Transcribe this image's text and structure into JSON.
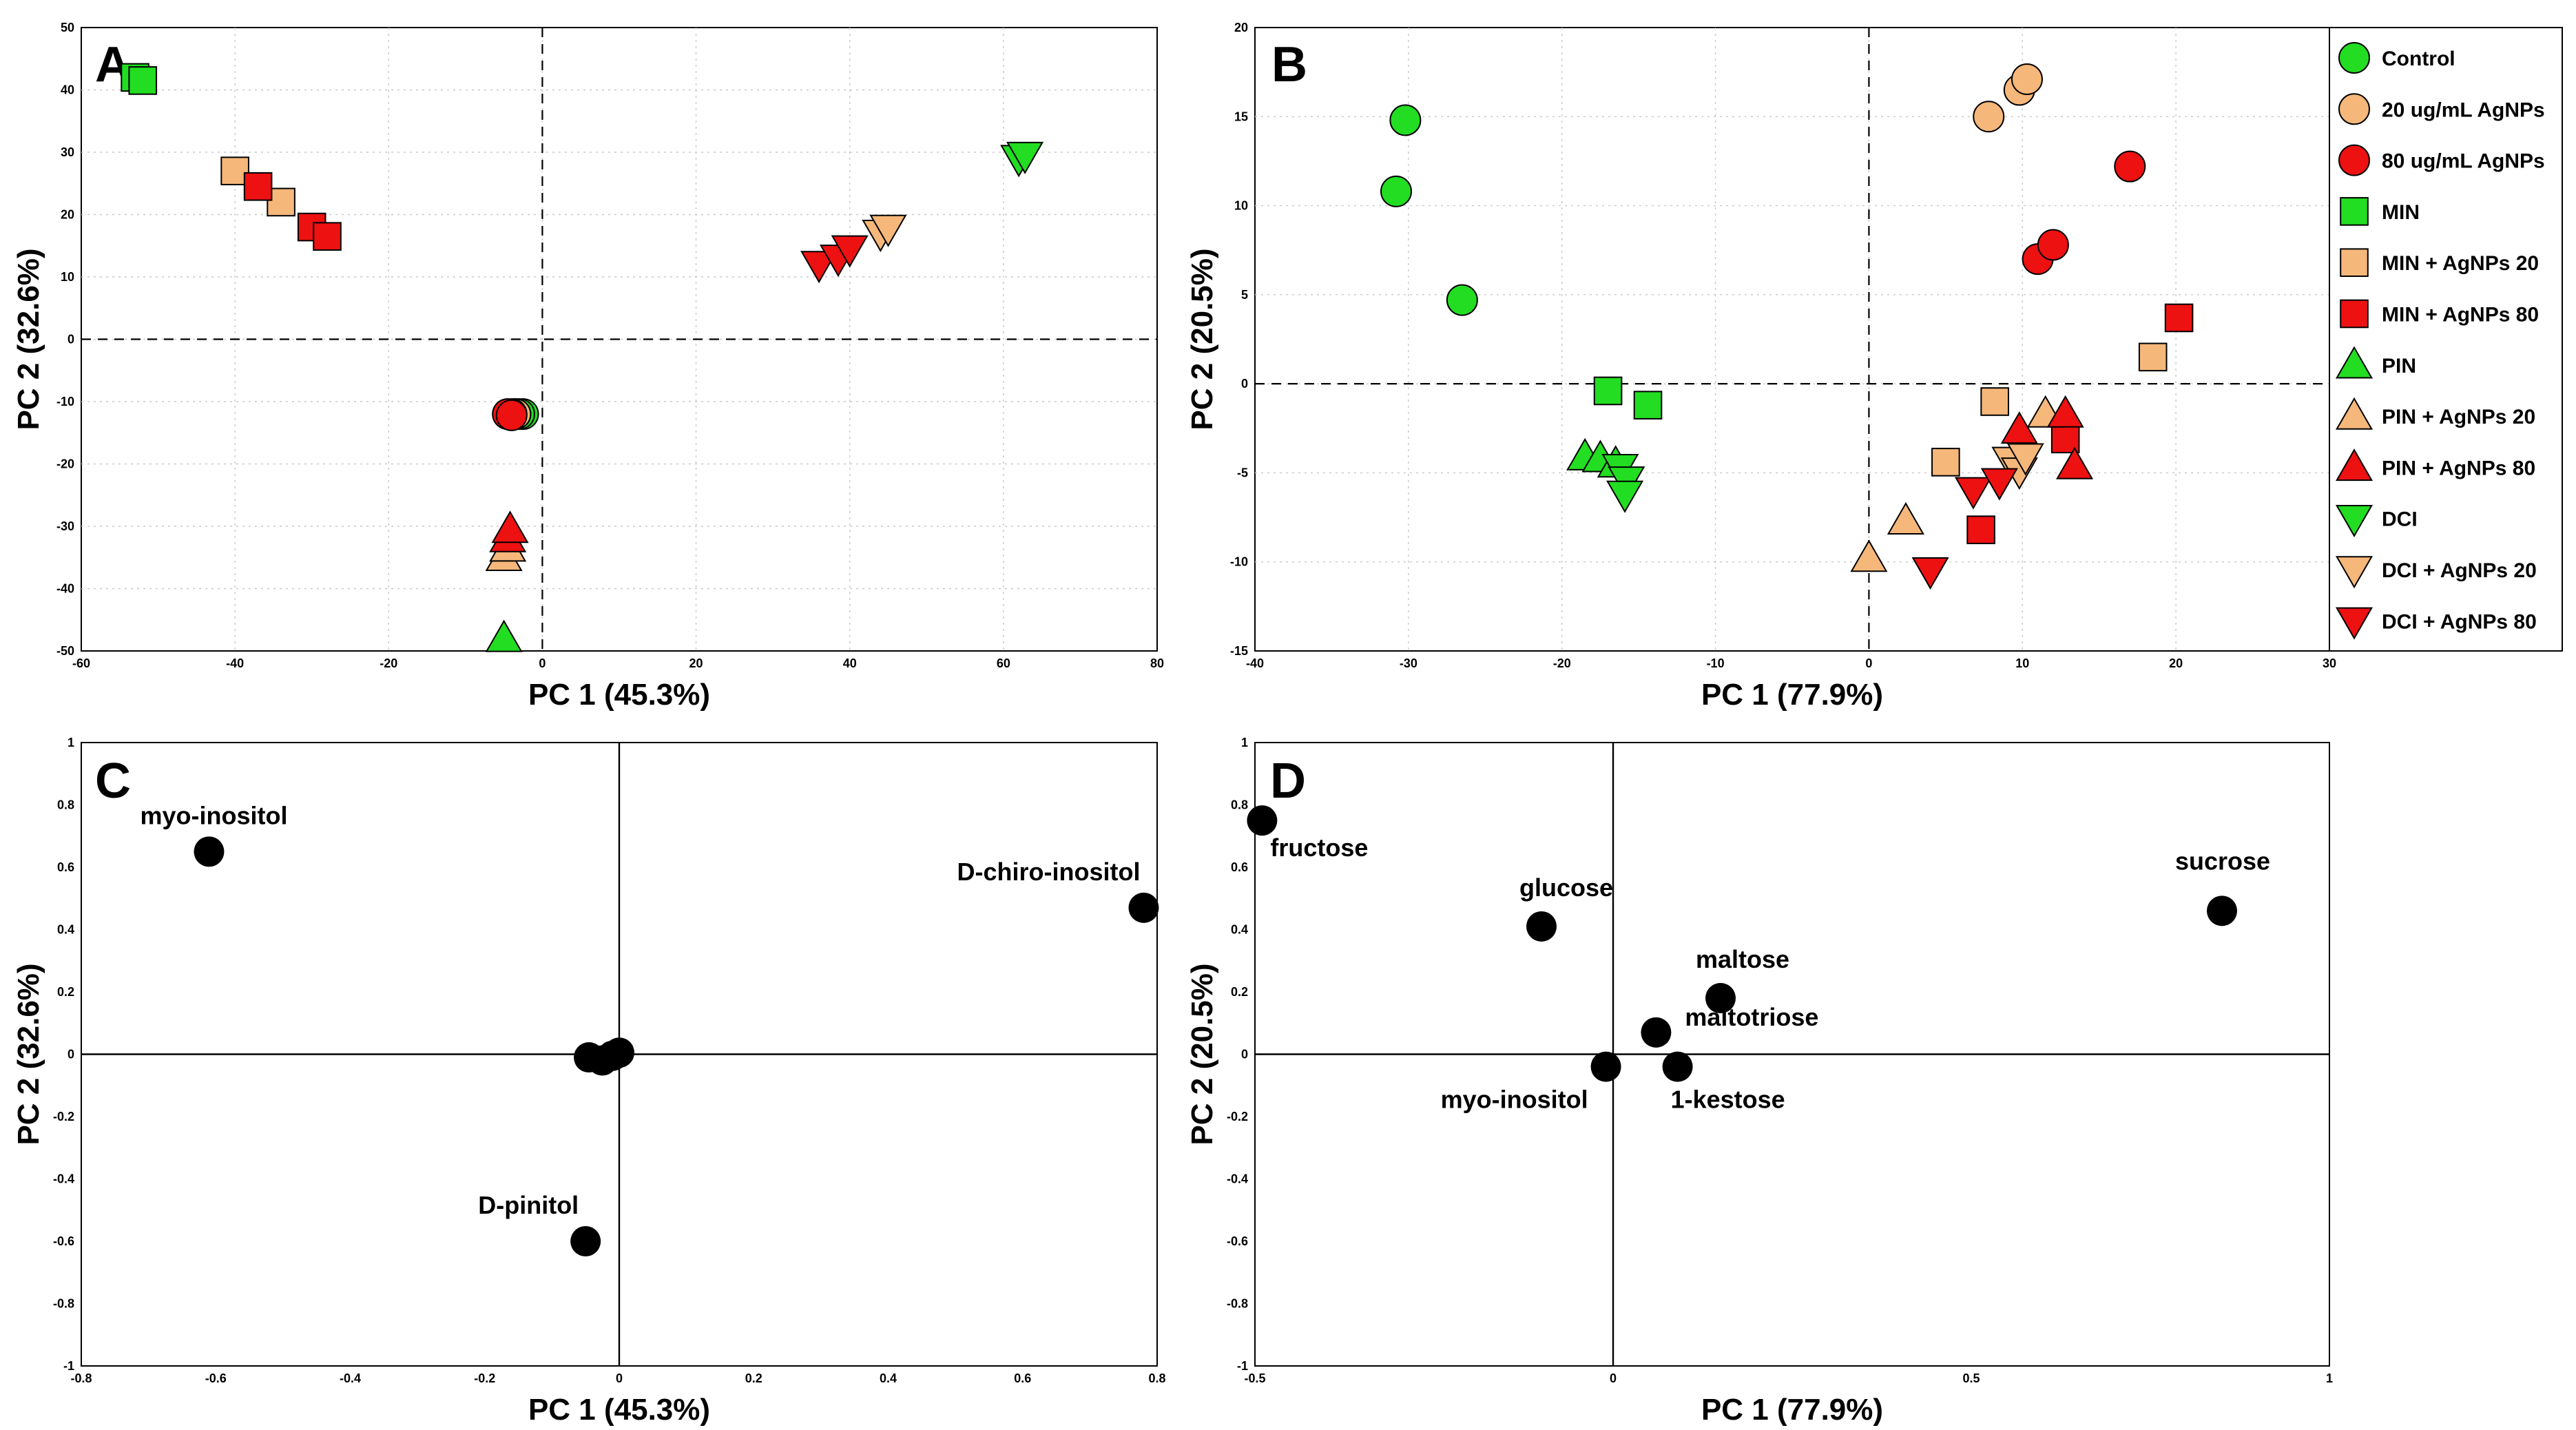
{
  "chart_data": [
    {
      "panel": "A",
      "type": "scatter",
      "title": "",
      "xlabel": "PC 1 (45.3%)",
      "ylabel": "PC 2 (32.6%)",
      "xlim": [
        -60,
        80
      ],
      "ylim": [
        -50,
        50
      ],
      "xticks": [
        -60,
        -40,
        -20,
        0,
        20,
        40,
        60,
        80
      ],
      "yticks": [
        -50,
        -40,
        -30,
        -20,
        -10,
        0,
        10,
        20,
        30,
        40,
        50
      ],
      "grid": true,
      "series": [
        {
          "name": "Control",
          "points": [
            [
              -2.5,
              -12
            ],
            [
              -3,
              -12
            ],
            [
              -3.5,
              -12
            ]
          ]
        },
        {
          "name": "20 ug/mL AgNPs",
          "points": [
            [
              -3.5,
              -12
            ],
            [
              -4,
              -12
            ]
          ]
        },
        {
          "name": "80 ug/mL AgNPs",
          "points": [
            [
              -4.5,
              -12
            ],
            [
              -4,
              -12.2
            ]
          ]
        },
        {
          "name": "MIN",
          "points": [
            [
              -53,
              42
            ],
            [
              -52,
              41.5
            ]
          ]
        },
        {
          "name": "MIN + AgNPs 20",
          "points": [
            [
              -40,
              27
            ],
            [
              -34,
              22
            ]
          ]
        },
        {
          "name": "MIN + AgNPs 80",
          "points": [
            [
              -37,
              24.5
            ],
            [
              -30,
              18
            ],
            [
              -28,
              16.5
            ]
          ]
        },
        {
          "name": "PIN",
          "points": [
            [
              -5,
              -48
            ]
          ]
        },
        {
          "name": "PIN + AgNPs 20",
          "points": [
            [
              -5,
              -35
            ],
            [
              -4.5,
              -33.5
            ]
          ]
        },
        {
          "name": "PIN + AgNPs 80",
          "points": [
            [
              -4.5,
              -32
            ],
            [
              -4.2,
              -30.5
            ]
          ]
        },
        {
          "name": "DCI",
          "points": [
            [
              62,
              29
            ],
            [
              62.8,
              29.5
            ]
          ]
        },
        {
          "name": "DCI + AgNPs 20",
          "points": [
            [
              44,
              17
            ],
            [
              45,
              17.8
            ]
          ]
        },
        {
          "name": "DCI + AgNPs 80",
          "points": [
            [
              36,
              12
            ],
            [
              38.5,
              13
            ],
            [
              40,
              14.5
            ]
          ]
        }
      ]
    },
    {
      "panel": "B",
      "type": "scatter",
      "title": "",
      "xlabel": "PC 1 (77.9%)",
      "ylabel": "PC 2 (20.5%)",
      "xlim": [
        -40,
        30
      ],
      "ylim": [
        -15,
        20
      ],
      "xticks": [
        -40,
        -30,
        -20,
        -10,
        0,
        10,
        20,
        30
      ],
      "yticks": [
        -15,
        -10,
        -5,
        0,
        5,
        10,
        15,
        20
      ],
      "grid": true,
      "legend": "right",
      "series": [
        {
          "name": "Control",
          "points": [
            [
              -30.2,
              14.8
            ],
            [
              -30.8,
              10.8
            ],
            [
              -26.5,
              4.7
            ]
          ]
        },
        {
          "name": "20 ug/mL AgNPs",
          "points": [
            [
              7.8,
              15
            ],
            [
              9.8,
              16.5
            ],
            [
              10.3,
              17.1
            ]
          ]
        },
        {
          "name": "80 ug/mL AgNPs",
          "points": [
            [
              17,
              12.2
            ],
            [
              11,
              7
            ],
            [
              12,
              7.8
            ]
          ]
        },
        {
          "name": "MIN",
          "points": [
            [
              -17,
              -0.4
            ],
            [
              -14.4,
              -1.2
            ]
          ]
        },
        {
          "name": "MIN + AgNPs 20",
          "points": [
            [
              5,
              -4.4
            ],
            [
              8.2,
              -1
            ],
            [
              18.5,
              1.5
            ]
          ]
        },
        {
          "name": "MIN + AgNPs 80",
          "points": [
            [
              20.2,
              3.7
            ],
            [
              12.8,
              -3.1
            ],
            [
              7.3,
              -8.2
            ]
          ]
        },
        {
          "name": "PIN",
          "points": [
            [
              -18.5,
              -4.1
            ],
            [
              -17.5,
              -4.2
            ],
            [
              -16.5,
              -4.5
            ]
          ]
        },
        {
          "name": "PIN + AgNPs 20",
          "points": [
            [
              0,
              -9.8
            ],
            [
              2.4,
              -7.7
            ],
            [
              11.5,
              -1.7
            ]
          ]
        },
        {
          "name": "PIN + AgNPs 80",
          "points": [
            [
              9.8,
              -2.6
            ],
            [
              12.8,
              -1.7
            ],
            [
              13.4,
              -4.6
            ]
          ]
        },
        {
          "name": "DCI",
          "points": [
            [
              -16.2,
              -4.7
            ],
            [
              -15.8,
              -5.4
            ],
            [
              -15.9,
              -6.2
            ]
          ]
        },
        {
          "name": "DCI + AgNPs 20",
          "points": [
            [
              9.2,
              -4.3
            ],
            [
              9.8,
              -4.9
            ],
            [
              10.2,
              -4.1
            ]
          ]
        },
        {
          "name": "DCI + AgNPs 80",
          "points": [
            [
              4,
              -10.5
            ],
            [
              6.8,
              -6
            ],
            [
              8.5,
              -5.5
            ]
          ]
        }
      ]
    },
    {
      "panel": "C",
      "type": "scatter",
      "title": "",
      "xlabel": "PC 1 (45.3%)",
      "ylabel": "PC 2 (32.6%)",
      "xlim": [
        -0.8,
        0.8
      ],
      "ylim": [
        -1,
        1
      ],
      "xticks": [
        "-0.8",
        "-0.6",
        "-0.4",
        "-0.2",
        "0",
        "0.2",
        "0.4",
        "0.6",
        "0.8"
      ],
      "yticks": [
        "-1",
        "-0.8",
        "-0.6",
        "-0.4",
        "-0.2",
        "0",
        "0.2",
        "0.4",
        "0.6",
        "0.8",
        "1"
      ],
      "grid": false,
      "points": [
        {
          "label": "myo-inositol",
          "x": -0.61,
          "y": 0.65
        },
        {
          "label": "D-chiro-inositol",
          "x": 0.78,
          "y": 0.47
        },
        {
          "label": "D-pinitol",
          "x": -0.05,
          "y": -0.6
        },
        {
          "label": "",
          "x": -0.045,
          "y": -0.01
        },
        {
          "label": "",
          "x": -0.025,
          "y": -0.02
        },
        {
          "label": "",
          "x": -0.01,
          "y": -0.005
        },
        {
          "label": "",
          "x": 0.0,
          "y": 0.005
        }
      ]
    },
    {
      "panel": "D",
      "type": "scatter",
      "title": "",
      "xlabel": "PC 1 (77.9%)",
      "ylabel": "PC 2 (20.5%)",
      "xlim": [
        -0.5,
        1
      ],
      "ylim": [
        -1,
        1
      ],
      "xticks": [
        "-0.5",
        "0",
        "0.5",
        "1"
      ],
      "yticks": [
        "-1",
        "-0.8",
        "-0.6",
        "-0.4",
        "-0.2",
        "0",
        "0.2",
        "0.4",
        "0.6",
        "0.8",
        "1"
      ],
      "grid": false,
      "points": [
        {
          "label": "fructose",
          "x": -0.49,
          "y": 0.75
        },
        {
          "label": "glucose",
          "x": -0.1,
          "y": 0.41
        },
        {
          "label": "sucrose",
          "x": 0.85,
          "y": 0.46
        },
        {
          "label": "maltose",
          "x": 0.15,
          "y": 0.18
        },
        {
          "label": "maltotriose",
          "x": 0.06,
          "y": 0.07
        },
        {
          "label": "myo-inositol",
          "x": -0.01,
          "y": -0.04
        },
        {
          "label": "1-kestose",
          "x": 0.09,
          "y": -0.04
        }
      ]
    }
  ],
  "legend": [
    {
      "name": "Control",
      "shape": "circle",
      "color": "#22dd22"
    },
    {
      "name": "20 ug/mL AgNPs",
      "shape": "circle",
      "color": "#f5b77a"
    },
    {
      "name": "80 ug/mL AgNPs",
      "shape": "circle",
      "color": "#ee1111"
    },
    {
      "name": "MIN",
      "shape": "square",
      "color": "#22dd22"
    },
    {
      "name": "MIN + AgNPs 20",
      "shape": "square",
      "color": "#f5b77a"
    },
    {
      "name": "MIN + AgNPs 80",
      "shape": "square",
      "color": "#ee1111"
    },
    {
      "name": "PIN",
      "shape": "triangle-up",
      "color": "#22dd22"
    },
    {
      "name": "PIN + AgNPs 20",
      "shape": "triangle-up",
      "color": "#f5b77a"
    },
    {
      "name": "PIN + AgNPs 80",
      "shape": "triangle-up",
      "color": "#ee1111"
    },
    {
      "name": "DCI",
      "shape": "triangle-down",
      "color": "#22dd22"
    },
    {
      "name": "DCI + AgNPs 20",
      "shape": "triangle-down",
      "color": "#f5b77a"
    },
    {
      "name": "DCI + AgNPs 80",
      "shape": "triangle-down",
      "color": "#ee1111"
    }
  ],
  "colors": {
    "green": "#22dd22",
    "orange": "#f5b77a",
    "red": "#ee1111",
    "black": "#000000"
  }
}
